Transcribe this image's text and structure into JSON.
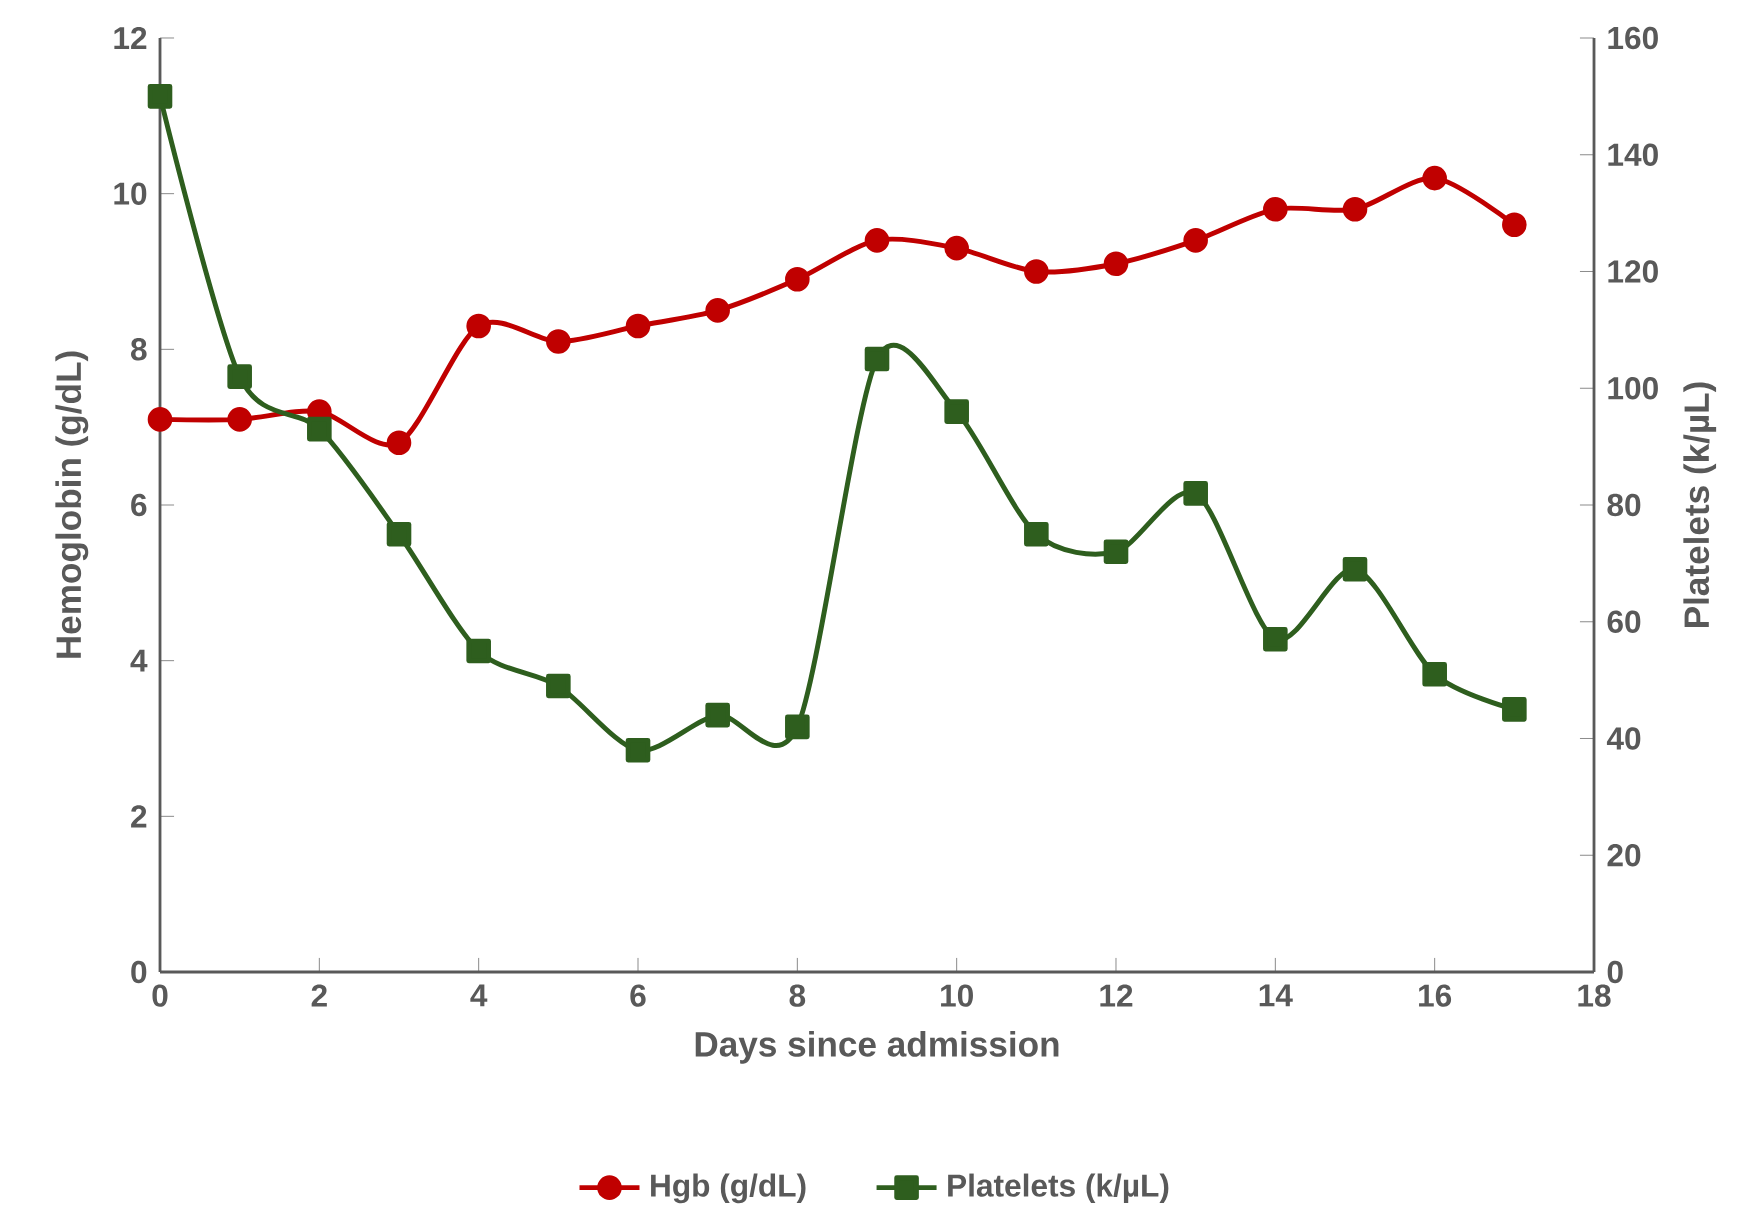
{
  "chart_data": {
    "type": "line",
    "xlabel": "Days since admission",
    "ylabel": "Hemoglobin (g/dL)",
    "y2label": "Platelets (k/µL)",
    "x": [
      0,
      1,
      2,
      3,
      4,
      5,
      6,
      7,
      8,
      9,
      10,
      11,
      12,
      13,
      14,
      15,
      16,
      17
    ],
    "series": [
      {
        "name": "Hgb (g/dL)",
        "color": "#c00000",
        "marker": "circle",
        "values": [
          7.1,
          7.1,
          7.2,
          6.8,
          8.3,
          8.1,
          8.3,
          8.5,
          8.9,
          9.4,
          9.3,
          9.0,
          9.1,
          9.4,
          9.8,
          9.8,
          10.2,
          9.6
        ]
      },
      {
        "name": "Platelets (k/µL)",
        "color": "#2e5e1e",
        "marker": "square",
        "axis": "y2",
        "values": [
          150,
          102,
          93,
          75,
          55,
          49,
          38,
          44,
          42,
          105,
          96,
          75,
          72,
          82,
          57,
          69,
          51,
          45
        ]
      }
    ],
    "xlim": [
      0,
      18
    ],
    "xticks": [
      0,
      2,
      4,
      6,
      8,
      10,
      12,
      14,
      16,
      18
    ],
    "ylim": [
      0,
      12
    ],
    "yticks": [
      0,
      2,
      4,
      6,
      8,
      10,
      12
    ],
    "y2lim": [
      0,
      160
    ],
    "y2ticks": [
      0,
      20,
      40,
      60,
      80,
      100,
      120,
      140,
      160
    ],
    "grid": false,
    "legend": "bottom",
    "line_style": "solid"
  }
}
